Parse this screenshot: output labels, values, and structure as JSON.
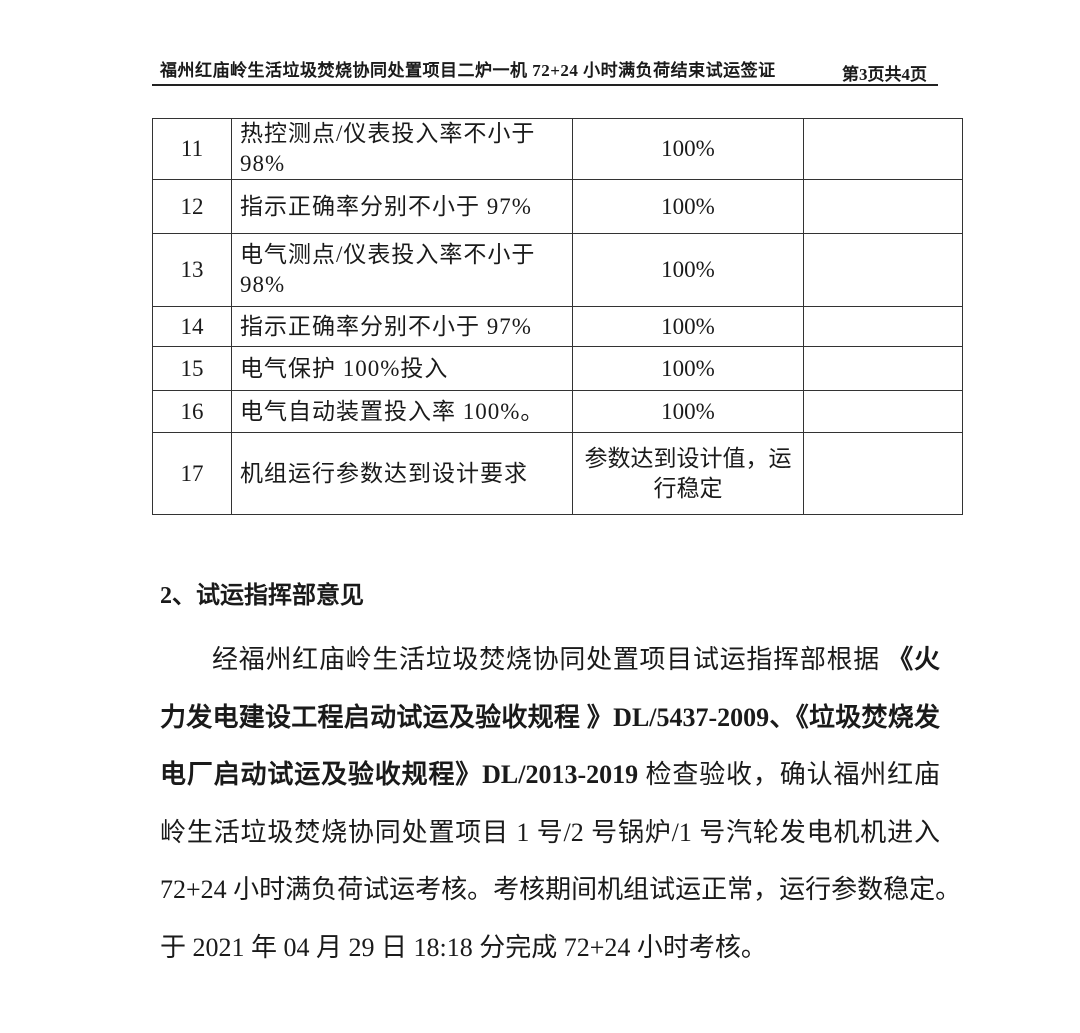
{
  "header": {
    "title": "福州红庙岭生活垃圾焚烧协同处置项目二炉一机 72+24 小时满负荷结束试运签证",
    "page": "第3页共4页"
  },
  "table": {
    "rows": [
      {
        "no": "11",
        "desc": "热控测点/仪表投入率不小于 98%",
        "value": "100%",
        "remark": ""
      },
      {
        "no": "12",
        "desc": "指示正确率分别不小于 97%",
        "value": "100%",
        "remark": ""
      },
      {
        "no": "13",
        "desc": "电气测点/仪表投入率不小于 98%",
        "value": "100%",
        "remark": ""
      },
      {
        "no": "14",
        "desc": "指示正确率分别不小于 97%",
        "value": "100%",
        "remark": ""
      },
      {
        "no": "15",
        "desc": "电气保护 100%投入",
        "value": "100%",
        "remark": ""
      },
      {
        "no": "16",
        "desc": "电气自动装置投入率 100%。",
        "value": "100%",
        "remark": ""
      },
      {
        "no": "17",
        "desc": "机组运行参数达到设计要求",
        "value": "参数达到设计值，运行稳定",
        "remark": ""
      }
    ]
  },
  "section": {
    "title": "2、试运指挥部意见"
  },
  "paragraph": {
    "lines": [
      [
        {
          "t": "经福州红庙岭生活垃圾焚烧协同处置项目试运指挥部根据 ",
          "b": false
        },
        {
          "t": "《火",
          "b": true
        }
      ],
      [
        {
          "t": "力发电建设工程启动试运及验收规程 》DL/5437-2009、《垃圾焚烧发",
          "b": true
        }
      ],
      [
        {
          "t": "电厂启动试运及验收规程》DL/2013-2019",
          "b": true
        },
        {
          "t": " 检查验收，确认福州红庙",
          "b": false
        }
      ],
      [
        {
          "t": "岭生活垃圾焚烧协同处置项目 1 号/2 号锅炉/1 号汽轮发电机机进入",
          "b": false
        }
      ],
      [
        {
          "t": "72+24 小时满负荷试运考核。考核期间机组试运正常，运行参数稳定。",
          "b": false
        }
      ],
      [
        {
          "t": "于 2021 年 04 月 29 日 18:18 分完成 72+24 小时考核。",
          "b": false
        }
      ]
    ]
  }
}
